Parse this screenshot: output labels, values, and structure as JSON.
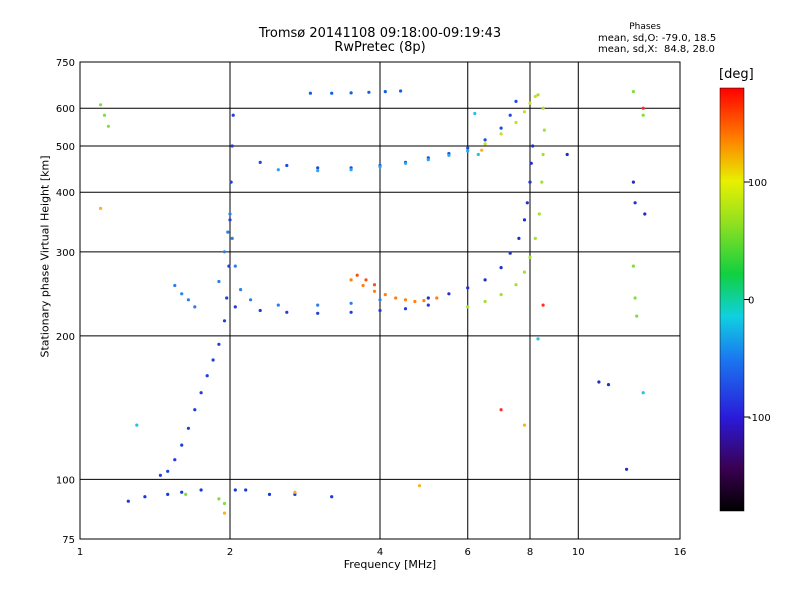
{
  "chart_data": {
    "type": "scatter",
    "title": "Tromsø 20141108 09:18:00-09:19:43",
    "subtitle": "RwPretec (8p)",
    "xlabel": "Frequency [MHz]",
    "ylabel": "Stationary phase Virtual Height [km]",
    "x_scale": "log",
    "y_scale": "log",
    "xlim": [
      1,
      16
    ],
    "ylim": [
      75,
      750
    ],
    "x_ticks": [
      1,
      2,
      4,
      6,
      8,
      10,
      16
    ],
    "x_tick_labels": [
      "1",
      "2",
      "4",
      "6",
      "8",
      "10",
      "16"
    ],
    "y_ticks": [
      75,
      100,
      200,
      300,
      400,
      500,
      600,
      750
    ],
    "y_tick_labels": [
      "75",
      "100",
      "200",
      "300",
      "400",
      "500",
      "600",
      "750"
    ],
    "grid": true,
    "phases": {
      "heading": "Phases",
      "o_stats": "mean, sd,O: -79.0, 18.5",
      "x_stats": "mean, sd,X:  84.8, 28.0"
    },
    "colorbar": {
      "label": "[deg]",
      "range": [
        -180,
        180
      ],
      "ticks": [
        100,
        0,
        -100
      ],
      "tick_labels": [
        "100",
        "0",
        "-100"
      ]
    },
    "series": [
      {
        "color": "#1f3fd8",
        "phase": -110,
        "points": [
          [
            1.45,
            102
          ],
          [
            1.5,
            104
          ],
          [
            1.55,
            110
          ],
          [
            1.6,
            118
          ],
          [
            1.65,
            128
          ],
          [
            1.7,
            140
          ],
          [
            1.75,
            152
          ],
          [
            1.8,
            165
          ],
          [
            1.85,
            178
          ],
          [
            1.9,
            192
          ],
          [
            1.95,
            215
          ],
          [
            1.97,
            240
          ],
          [
            1.99,
            280
          ],
          [
            2.0,
            350
          ],
          [
            2.01,
            420
          ],
          [
            2.02,
            500
          ],
          [
            2.03,
            580
          ],
          [
            2.05,
            230
          ],
          [
            2.3,
            226
          ],
          [
            2.6,
            224
          ],
          [
            3.0,
            223
          ],
          [
            3.5,
            224
          ],
          [
            4.0,
            226
          ],
          [
            4.5,
            228
          ],
          [
            5.0,
            232
          ]
        ]
      },
      {
        "color": "#2b7fe8",
        "phase": -80,
        "points": [
          [
            1.9,
            260
          ],
          [
            1.95,
            300
          ],
          [
            1.98,
            330
          ],
          [
            2.0,
            360
          ],
          [
            2.02,
            320
          ],
          [
            2.05,
            280
          ],
          [
            2.1,
            250
          ],
          [
            2.2,
            238
          ],
          [
            2.5,
            232
          ],
          [
            3.0,
            232
          ],
          [
            3.5,
            234
          ],
          [
            4.0,
            238
          ],
          [
            1.55,
            255
          ],
          [
            1.6,
            245
          ],
          [
            1.65,
            238
          ],
          [
            1.7,
            230
          ]
        ]
      },
      {
        "color": "#1a4ee0",
        "phase": -105,
        "points": [
          [
            2.3,
            462
          ],
          [
            2.6,
            455
          ],
          [
            3.0,
            450
          ],
          [
            3.5,
            450
          ],
          [
            4.0,
            455
          ],
          [
            4.5,
            462
          ],
          [
            5.0,
            472
          ],
          [
            5.5,
            482
          ],
          [
            6.0,
            495
          ],
          [
            6.5,
            515
          ],
          [
            7.0,
            545
          ],
          [
            7.3,
            580
          ],
          [
            7.5,
            620
          ]
        ]
      },
      {
        "color": "#2aa6f0",
        "phase": -60,
        "points": [
          [
            2.5,
            446
          ],
          [
            3.0,
            444
          ],
          [
            3.5,
            446
          ],
          [
            4.0,
            452
          ],
          [
            4.5,
            460
          ],
          [
            5.0,
            468
          ],
          [
            5.5,
            478
          ],
          [
            6.0,
            488
          ]
        ]
      },
      {
        "color": "#2030c8",
        "phase": -120,
        "points": [
          [
            5.0,
            240
          ],
          [
            5.5,
            245
          ],
          [
            6.0,
            252
          ],
          [
            6.5,
            262
          ],
          [
            7.0,
            278
          ],
          [
            7.3,
            298
          ],
          [
            7.6,
            320
          ],
          [
            7.8,
            350
          ],
          [
            7.9,
            380
          ],
          [
            8.0,
            420
          ],
          [
            8.05,
            460
          ],
          [
            8.1,
            500
          ]
        ]
      },
      {
        "color": "#a6e030",
        "phase": 80,
        "points": [
          [
            6.0,
            230
          ],
          [
            6.5,
            236
          ],
          [
            7.0,
            244
          ],
          [
            7.5,
            256
          ],
          [
            7.8,
            272
          ],
          [
            8.0,
            292
          ],
          [
            8.2,
            320
          ],
          [
            8.35,
            360
          ],
          [
            8.45,
            420
          ],
          [
            8.5,
            480
          ],
          [
            8.55,
            540
          ],
          [
            8.5,
            600
          ],
          [
            8.3,
            640
          ]
        ]
      },
      {
        "color": "#c8e020",
        "phase": 90,
        "points": [
          [
            6.5,
            505
          ],
          [
            7.0,
            530
          ],
          [
            7.5,
            560
          ],
          [
            7.8,
            590
          ],
          [
            8.0,
            615
          ],
          [
            8.2,
            635
          ]
        ]
      },
      {
        "color": "#ff7f10",
        "phase": 140,
        "points": [
          [
            3.5,
            262
          ],
          [
            3.7,
            255
          ],
          [
            3.9,
            248
          ],
          [
            4.1,
            244
          ],
          [
            4.3,
            240
          ],
          [
            4.5,
            238
          ],
          [
            4.7,
            236
          ],
          [
            4.9,
            237
          ],
          [
            5.2,
            240
          ]
        ]
      },
      {
        "color": "#ff4f10",
        "phase": 160,
        "points": [
          [
            3.6,
            268
          ],
          [
            3.75,
            262
          ],
          [
            3.9,
            256
          ]
        ]
      },
      {
        "color": "#1060e0",
        "phase": -95,
        "points": [
          [
            2.9,
            645
          ],
          [
            3.2,
            645
          ],
          [
            3.5,
            646
          ],
          [
            3.8,
            648
          ],
          [
            4.1,
            650
          ],
          [
            4.4,
            652
          ]
        ]
      },
      {
        "color": "#1838d8",
        "phase": -110,
        "points": [
          [
            1.25,
            90
          ],
          [
            1.35,
            92
          ],
          [
            1.5,
            93
          ],
          [
            1.6,
            94
          ],
          [
            1.75,
            95
          ],
          [
            2.05,
            95
          ],
          [
            2.15,
            95
          ],
          [
            2.4,
            93
          ],
          [
            2.7,
            93
          ],
          [
            3.2,
            92
          ]
        ]
      },
      {
        "color": "#7fdf40",
        "phase": 60,
        "points": [
          [
            1.1,
            610
          ],
          [
            1.12,
            580
          ],
          [
            1.14,
            550
          ],
          [
            1.63,
            93
          ],
          [
            1.9,
            91
          ],
          [
            1.95,
            89
          ],
          [
            12.9,
            650
          ],
          [
            13.5,
            580
          ],
          [
            12.9,
            280
          ],
          [
            13.0,
            240
          ],
          [
            13.1,
            220
          ]
        ]
      },
      {
        "color": "#ff3020",
        "phase": 170,
        "points": [
          [
            8.5,
            232
          ],
          [
            7.0,
            140
          ],
          [
            13.5,
            600
          ]
        ]
      },
      {
        "color": "#2030c0",
        "phase": -125,
        "points": [
          [
            12.9,
            420
          ],
          [
            13.0,
            380
          ],
          [
            13.6,
            360
          ],
          [
            11.0,
            160
          ],
          [
            11.5,
            158
          ],
          [
            12.5,
            105
          ],
          [
            9.5,
            480
          ]
        ]
      },
      {
        "color": "#ffb020",
        "phase": 120,
        "points": [
          [
            1.1,
            370
          ],
          [
            4.8,
            97
          ],
          [
            6.4,
            490
          ],
          [
            7.8,
            130
          ],
          [
            2.7,
            94
          ],
          [
            1.95,
            85
          ]
        ]
      },
      {
        "color": "#28c0e8",
        "phase": -40,
        "points": [
          [
            8.3,
            197
          ],
          [
            13.5,
            152
          ],
          [
            1.3,
            130
          ],
          [
            6.2,
            585
          ],
          [
            6.3,
            480
          ]
        ]
      }
    ]
  }
}
